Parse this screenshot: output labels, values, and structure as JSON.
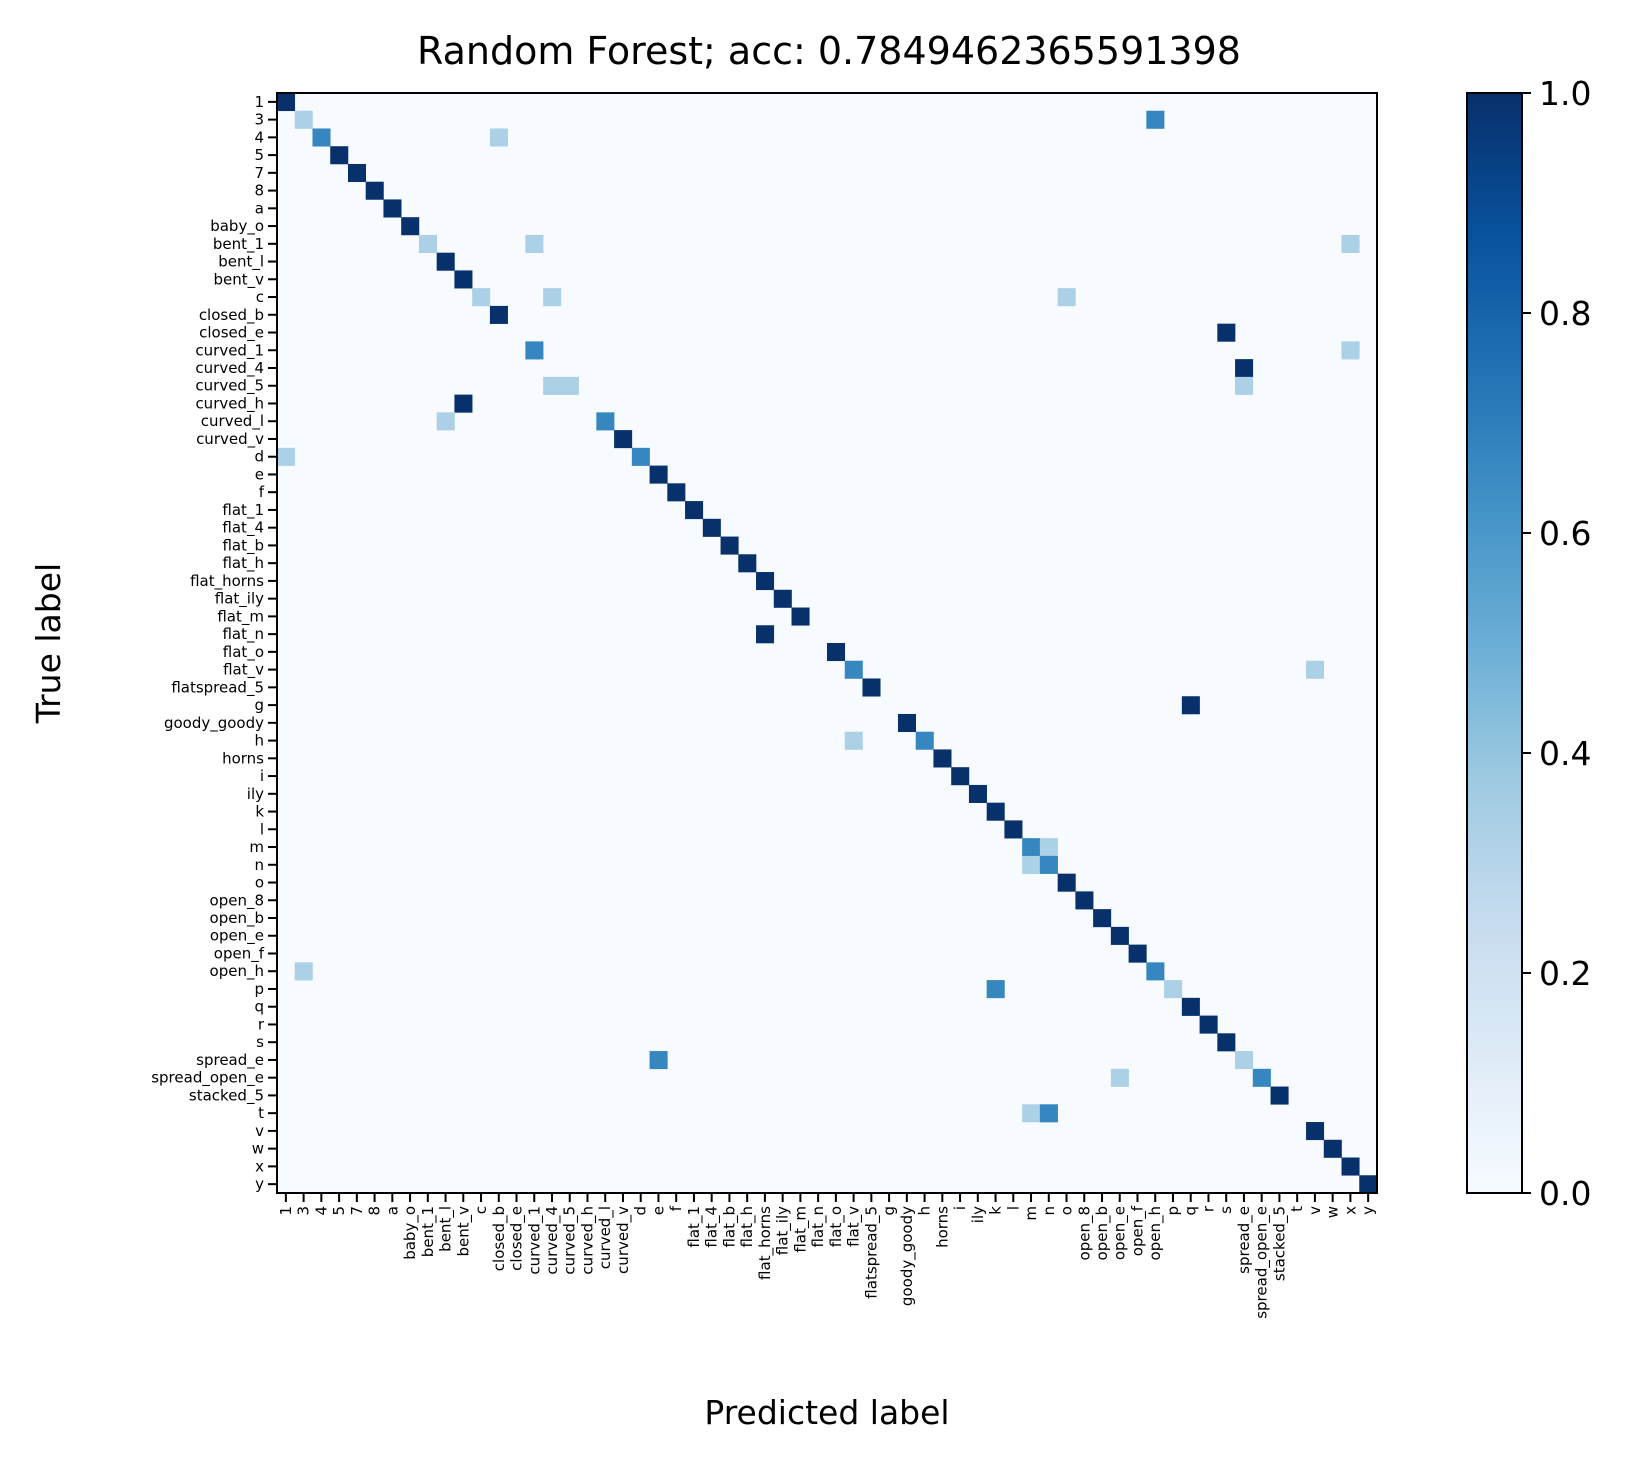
{
  "chart_data": {
    "type": "heatmap",
    "title": "Random Forest; acc: 0.7849462365591398",
    "xlabel": "Predicted label",
    "ylabel": "True label",
    "colormap": "Blues",
    "vmin": 0.0,
    "vmax": 1.0,
    "colorbar_ticks": [
      "0.0",
      "0.2",
      "0.4",
      "0.6",
      "0.8",
      "1.0"
    ],
    "colorbar_tick_values": [
      0.0,
      0.2,
      0.4,
      0.6,
      0.8,
      1.0
    ],
    "labels": [
      "1",
      "3",
      "4",
      "5",
      "7",
      "8",
      "a",
      "baby_o",
      "bent_1",
      "bent_l",
      "bent_v",
      "c",
      "closed_b",
      "closed_e",
      "curved_1",
      "curved_4",
      "curved_5",
      "curved_h",
      "curved_l",
      "curved_v",
      "d",
      "e",
      "f",
      "flat_1",
      "flat_4",
      "flat_b",
      "flat_h",
      "flat_horns",
      "flat_ily",
      "flat_m",
      "flat_n",
      "flat_o",
      "flat_v",
      "flatspread_5",
      "g",
      "goody_goody",
      "h",
      "horns",
      "i",
      "ily",
      "k",
      "l",
      "m",
      "n",
      "o",
      "open_8",
      "open_b",
      "open_e",
      "open_f",
      "open_h",
      "p",
      "q",
      "r",
      "s",
      "spread_e",
      "spread_open_e",
      "stacked_5",
      "t",
      "v",
      "w",
      "x",
      "y"
    ],
    "cells": [
      [
        0,
        0,
        1.0
      ],
      [
        1,
        1,
        0.33
      ],
      [
        1,
        49,
        0.67
      ],
      [
        2,
        2,
        0.67
      ],
      [
        2,
        12,
        0.33
      ],
      [
        3,
        3,
        1.0
      ],
      [
        4,
        4,
        1.0
      ],
      [
        5,
        5,
        1.0
      ],
      [
        6,
        6,
        1.0
      ],
      [
        7,
        7,
        1.0
      ],
      [
        8,
        8,
        0.33
      ],
      [
        8,
        14,
        0.33
      ],
      [
        8,
        60,
        0.33
      ],
      [
        9,
        9,
        1.0
      ],
      [
        10,
        10,
        1.0
      ],
      [
        11,
        11,
        0.33
      ],
      [
        11,
        15,
        0.33
      ],
      [
        11,
        44,
        0.33
      ],
      [
        12,
        12,
        1.0
      ],
      [
        13,
        53,
        1.0
      ],
      [
        14,
        14,
        0.67
      ],
      [
        14,
        60,
        0.33
      ],
      [
        15,
        54,
        1.0
      ],
      [
        16,
        15,
        0.33
      ],
      [
        16,
        16,
        0.33
      ],
      [
        16,
        54,
        0.33
      ],
      [
        17,
        10,
        1.0
      ],
      [
        18,
        9,
        0.33
      ],
      [
        18,
        18,
        0.67
      ],
      [
        19,
        19,
        1.0
      ],
      [
        20,
        0,
        0.33
      ],
      [
        20,
        20,
        0.67
      ],
      [
        21,
        21,
        1.0
      ],
      [
        22,
        22,
        1.0
      ],
      [
        23,
        23,
        1.0
      ],
      [
        24,
        24,
        1.0
      ],
      [
        25,
        25,
        1.0
      ],
      [
        26,
        26,
        1.0
      ],
      [
        27,
        27,
        1.0
      ],
      [
        28,
        28,
        1.0
      ],
      [
        29,
        29,
        1.0
      ],
      [
        30,
        27,
        1.0
      ],
      [
        31,
        31,
        1.0
      ],
      [
        32,
        32,
        0.67
      ],
      [
        32,
        58,
        0.33
      ],
      [
        33,
        33,
        1.0
      ],
      [
        34,
        51,
        1.0
      ],
      [
        35,
        35,
        1.0
      ],
      [
        36,
        32,
        0.33
      ],
      [
        36,
        36,
        0.67
      ],
      [
        37,
        37,
        1.0
      ],
      [
        38,
        38,
        1.0
      ],
      [
        39,
        39,
        1.0
      ],
      [
        40,
        40,
        1.0
      ],
      [
        41,
        41,
        1.0
      ],
      [
        42,
        42,
        0.67
      ],
      [
        42,
        43,
        0.33
      ],
      [
        43,
        42,
        0.33
      ],
      [
        43,
        43,
        0.67
      ],
      [
        44,
        44,
        1.0
      ],
      [
        45,
        45,
        1.0
      ],
      [
        46,
        46,
        1.0
      ],
      [
        47,
        47,
        1.0
      ],
      [
        48,
        48,
        1.0
      ],
      [
        49,
        1,
        0.33
      ],
      [
        49,
        49,
        0.67
      ],
      [
        50,
        40,
        0.67
      ],
      [
        50,
        50,
        0.33
      ],
      [
        51,
        51,
        1.0
      ],
      [
        52,
        52,
        1.0
      ],
      [
        53,
        53,
        1.0
      ],
      [
        54,
        21,
        0.67
      ],
      [
        54,
        54,
        0.33
      ],
      [
        55,
        47,
        0.33
      ],
      [
        55,
        55,
        0.67
      ],
      [
        56,
        56,
        1.0
      ],
      [
        57,
        42,
        0.33
      ],
      [
        57,
        43,
        0.67
      ],
      [
        58,
        58,
        1.0
      ],
      [
        59,
        59,
        1.0
      ],
      [
        60,
        60,
        1.0
      ],
      [
        61,
        61,
        1.0
      ]
    ]
  }
}
